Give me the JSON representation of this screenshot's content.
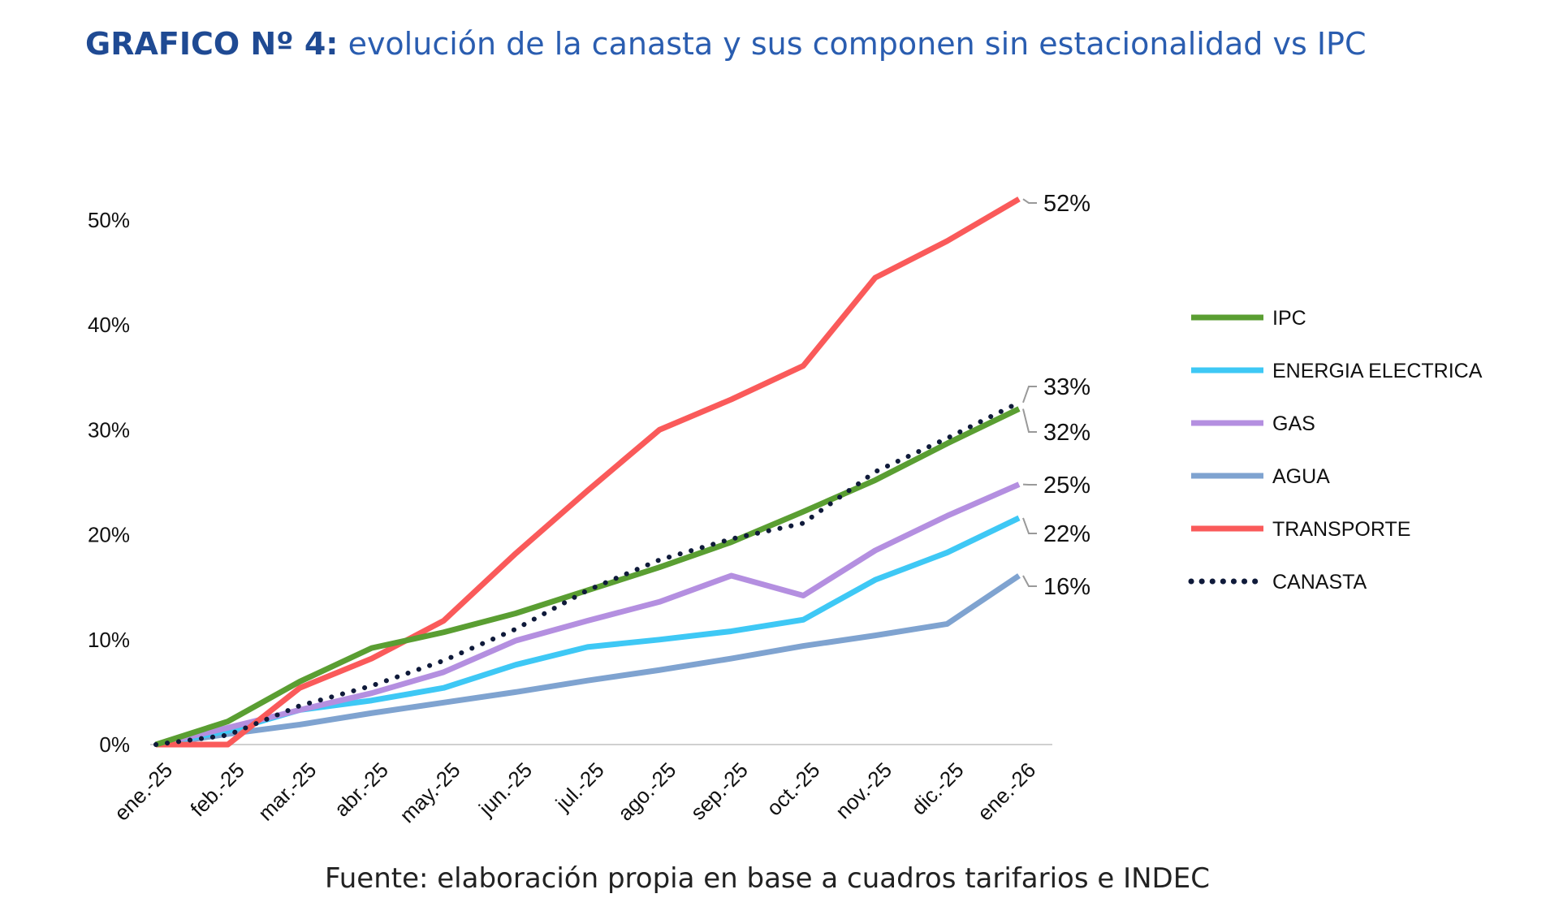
{
  "title_bold": "GRAFICO Nº 4:",
  "title_rest": " evolución de la canasta y sus componen sin estacionalidad vs IPC",
  "source": "Fuente: elaboración propia en base a cuadros tarifarios e INDEC",
  "chart_data": {
    "type": "line",
    "categories": [
      "ene.-25",
      "feb.-25",
      "mar.-25",
      "abr.-25",
      "may.-25",
      "jun.-25",
      "jul.-25",
      "ago.-25",
      "sep.-25",
      "oct.-25",
      "nov.-25",
      "dic.-25",
      "ene.-26"
    ],
    "ylim": [
      0,
      55
    ],
    "yticks": [
      0,
      10,
      20,
      30,
      40,
      50
    ],
    "ytick_labels": [
      "0%",
      "10%",
      "20%",
      "30%",
      "40%",
      "50%"
    ],
    "grid": false,
    "legend_placement": "right",
    "series": [
      {
        "name": "IPC",
        "color": "#5a9e32",
        "style": "solid",
        "values": [
          0,
          2.2,
          6,
          9.2,
          10.7,
          12.5,
          14.7,
          16.9,
          19.3,
          22.2,
          25.2,
          28.7,
          32
        ],
        "end_label": "32%"
      },
      {
        "name": "ENERGIA ELECTRICA",
        "color": "#3ec8f5",
        "style": "solid",
        "values": [
          0,
          1.3,
          3.3,
          4.2,
          5.4,
          7.6,
          9.3,
          10,
          10.8,
          11.9,
          15.7,
          18.3,
          21.6
        ],
        "end_label": "22%"
      },
      {
        "name": "GAS",
        "color": "#b48fe0",
        "style": "solid",
        "values": [
          0,
          1.6,
          3.3,
          4.9,
          6.9,
          9.9,
          11.8,
          13.6,
          16.1,
          14.2,
          18.5,
          21.8,
          24.8
        ],
        "end_label": "25%"
      },
      {
        "name": "AGUA",
        "color": "#7fa3d0",
        "style": "solid",
        "values": [
          0,
          1,
          1.9,
          3,
          4,
          5,
          6.1,
          7.1,
          8.2,
          9.4,
          10.4,
          11.5,
          16.1
        ],
        "end_label": "16%"
      },
      {
        "name": "TRANSPORTE",
        "color": "#fa5a5a",
        "style": "solid",
        "values": [
          0,
          0,
          5.4,
          8.2,
          11.8,
          18.2,
          24.2,
          30,
          32.9,
          36.1,
          44.5,
          48,
          52
        ],
        "end_label": "52%"
      },
      {
        "name": "CANASTA",
        "color": "#0f1a3a",
        "style": "dotted",
        "values": [
          0,
          0.9,
          3.7,
          5.6,
          8,
          11,
          14.7,
          17.6,
          19.6,
          21.1,
          26,
          29.2,
          32.6
        ],
        "end_label": "33%"
      }
    ]
  }
}
